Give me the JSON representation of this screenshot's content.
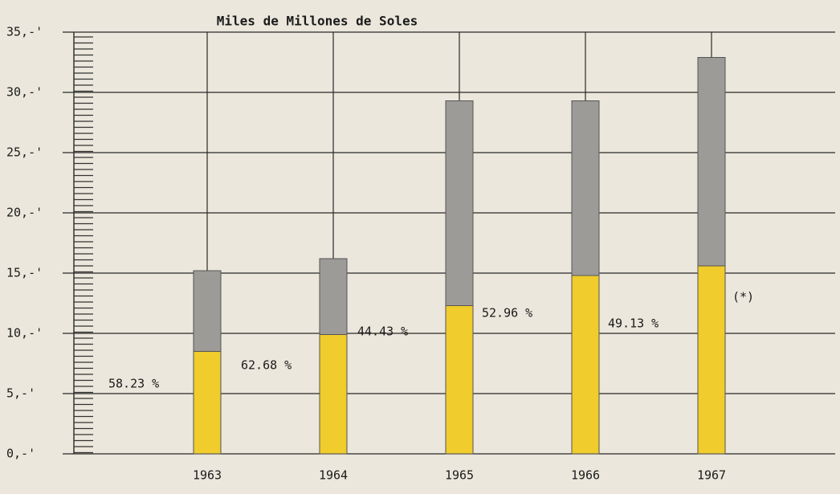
{
  "chart_data": {
    "type": "stacked_bar",
    "title": "Miles de Millones de Soles",
    "categories": [
      "1963",
      "1964",
      "1965",
      "1966",
      "1967"
    ],
    "series": [
      {
        "color": "#f0cc2c",
        "values": [
          8.5,
          9.9,
          12.3,
          14.8,
          15.6
        ]
      },
      {
        "color": "#9c9b97",
        "values": [
          6.7,
          6.3,
          17.0,
          14.5,
          17.3
        ]
      }
    ],
    "ylim": [
      0,
      35
    ],
    "yticks": [
      {
        "value": 0,
        "label": "0,-'"
      },
      {
        "value": 5,
        "label": "5,-'"
      },
      {
        "value": 10,
        "label": "10,-'"
      },
      {
        "value": 15,
        "label": "15,-'"
      },
      {
        "value": 20,
        "label": "20,-'"
      },
      {
        "value": 25,
        "label": "25,-'"
      },
      {
        "value": 30,
        "label": "30,-'"
      },
      {
        "value": 35,
        "label": "35,-'"
      }
    ],
    "grid": true,
    "annotations": [
      "58.23 %",
      "62.68 %",
      "44.43 %",
      "52.96 %",
      "49.13 %",
      "(*)"
    ]
  }
}
